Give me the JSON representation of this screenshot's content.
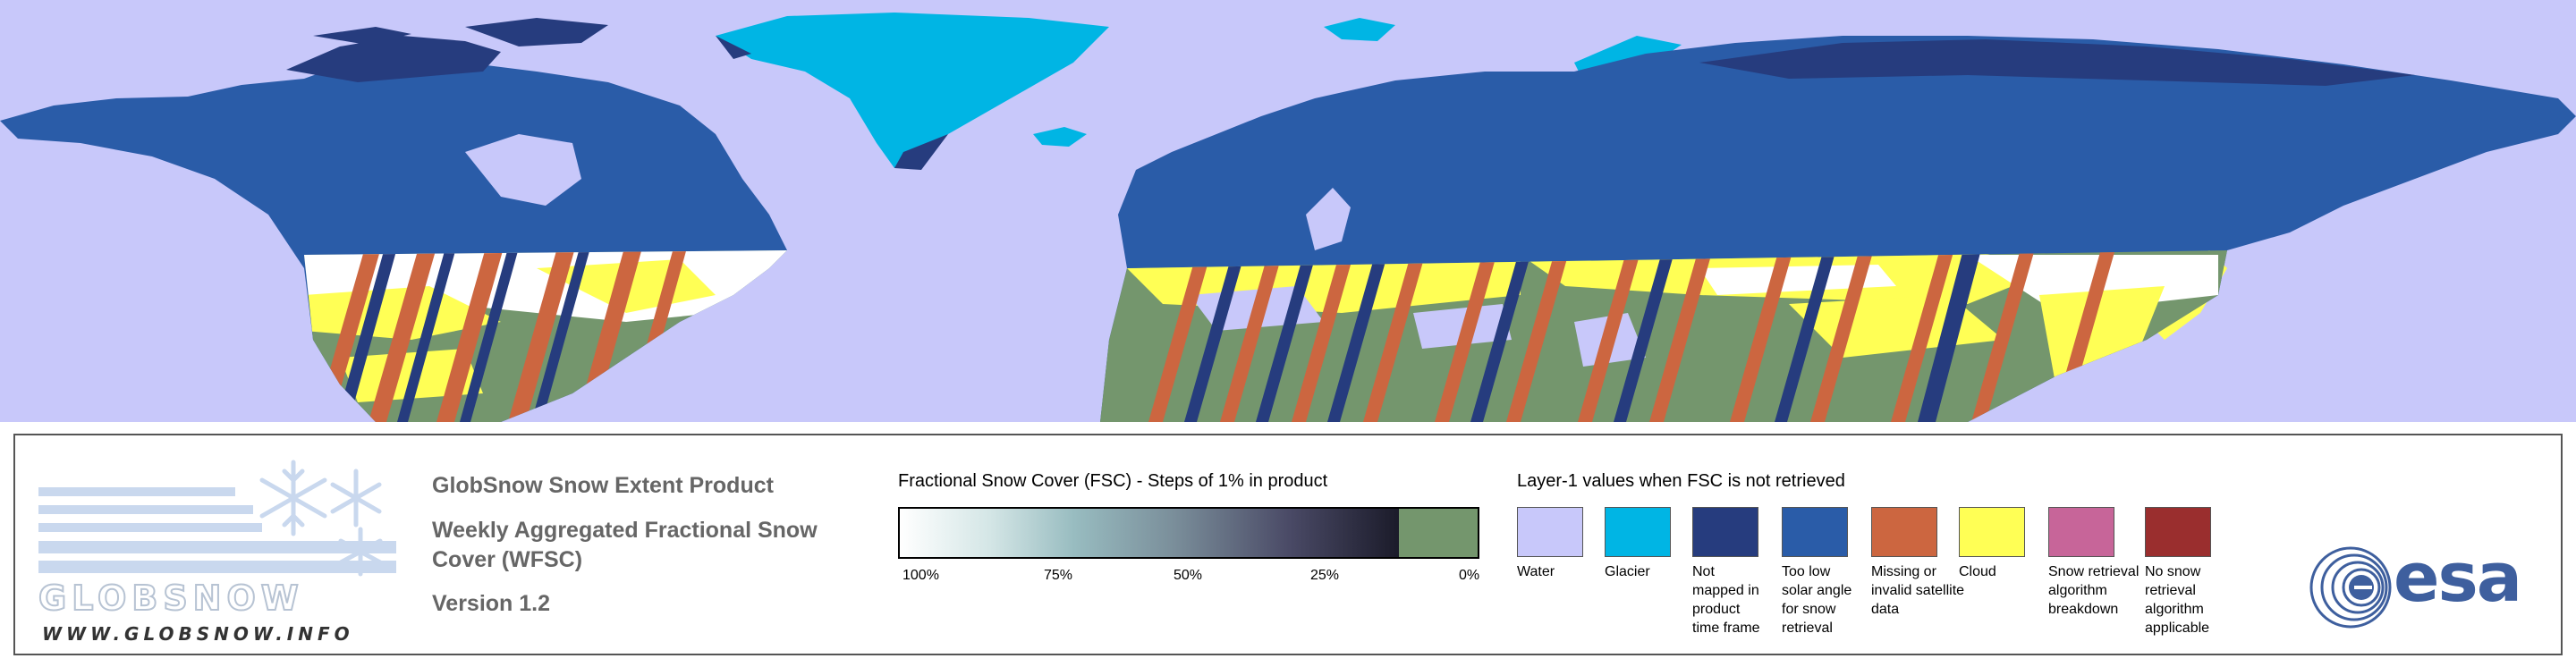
{
  "map": {
    "colors": {
      "water": "#c8c8fa",
      "glacier": "#00b5e4",
      "not_mapped": "#263c7e",
      "low_sun": "#2a5ca8",
      "missing": "#cc6640",
      "cloud": "#ffff55",
      "breakdown": "#c76599",
      "no_retrieval": "#9a2e2e",
      "snow_free": "#74966d",
      "snow": "#ffffff"
    }
  },
  "logo": {
    "wordmark": "GLOBSNOW",
    "url": "WWW.GLOBSNOW.INFO"
  },
  "product": {
    "title": "GlobSnow Snow Extent Product",
    "subtitle": "Weekly Aggregated Fractional Snow Cover (WFSC)",
    "version": "Version 1.2"
  },
  "fsc_legend": {
    "title": "Fractional Snow Cover (FSC) - Steps of 1% in product",
    "ticks": [
      "100%",
      "75%",
      "50%",
      "25%",
      "0%"
    ],
    "zero_color": "#74966d"
  },
  "layer1_legend": {
    "title": "Layer-1 values when FSC is not retrieved",
    "items": [
      {
        "label": "Water",
        "color": "#c8c8fa"
      },
      {
        "label": "Glacier",
        "color": "#00b5e4"
      },
      {
        "label": "Not mapped in product time frame",
        "color": "#263c7e"
      },
      {
        "label": "Too low solar angle for snow retrieval",
        "color": "#2a5ca8"
      },
      {
        "label": "Missing or invalid satellite data",
        "color": "#cc6640"
      },
      {
        "label": "Cloud",
        "color": "#ffff55"
      },
      {
        "label": "Snow retrieval algorithm breakdown",
        "color": "#c76599"
      },
      {
        "label": "No snow retrieval algorithm applicable",
        "color": "#9a2e2e"
      }
    ]
  },
  "agency": {
    "logo_text": "esa"
  }
}
